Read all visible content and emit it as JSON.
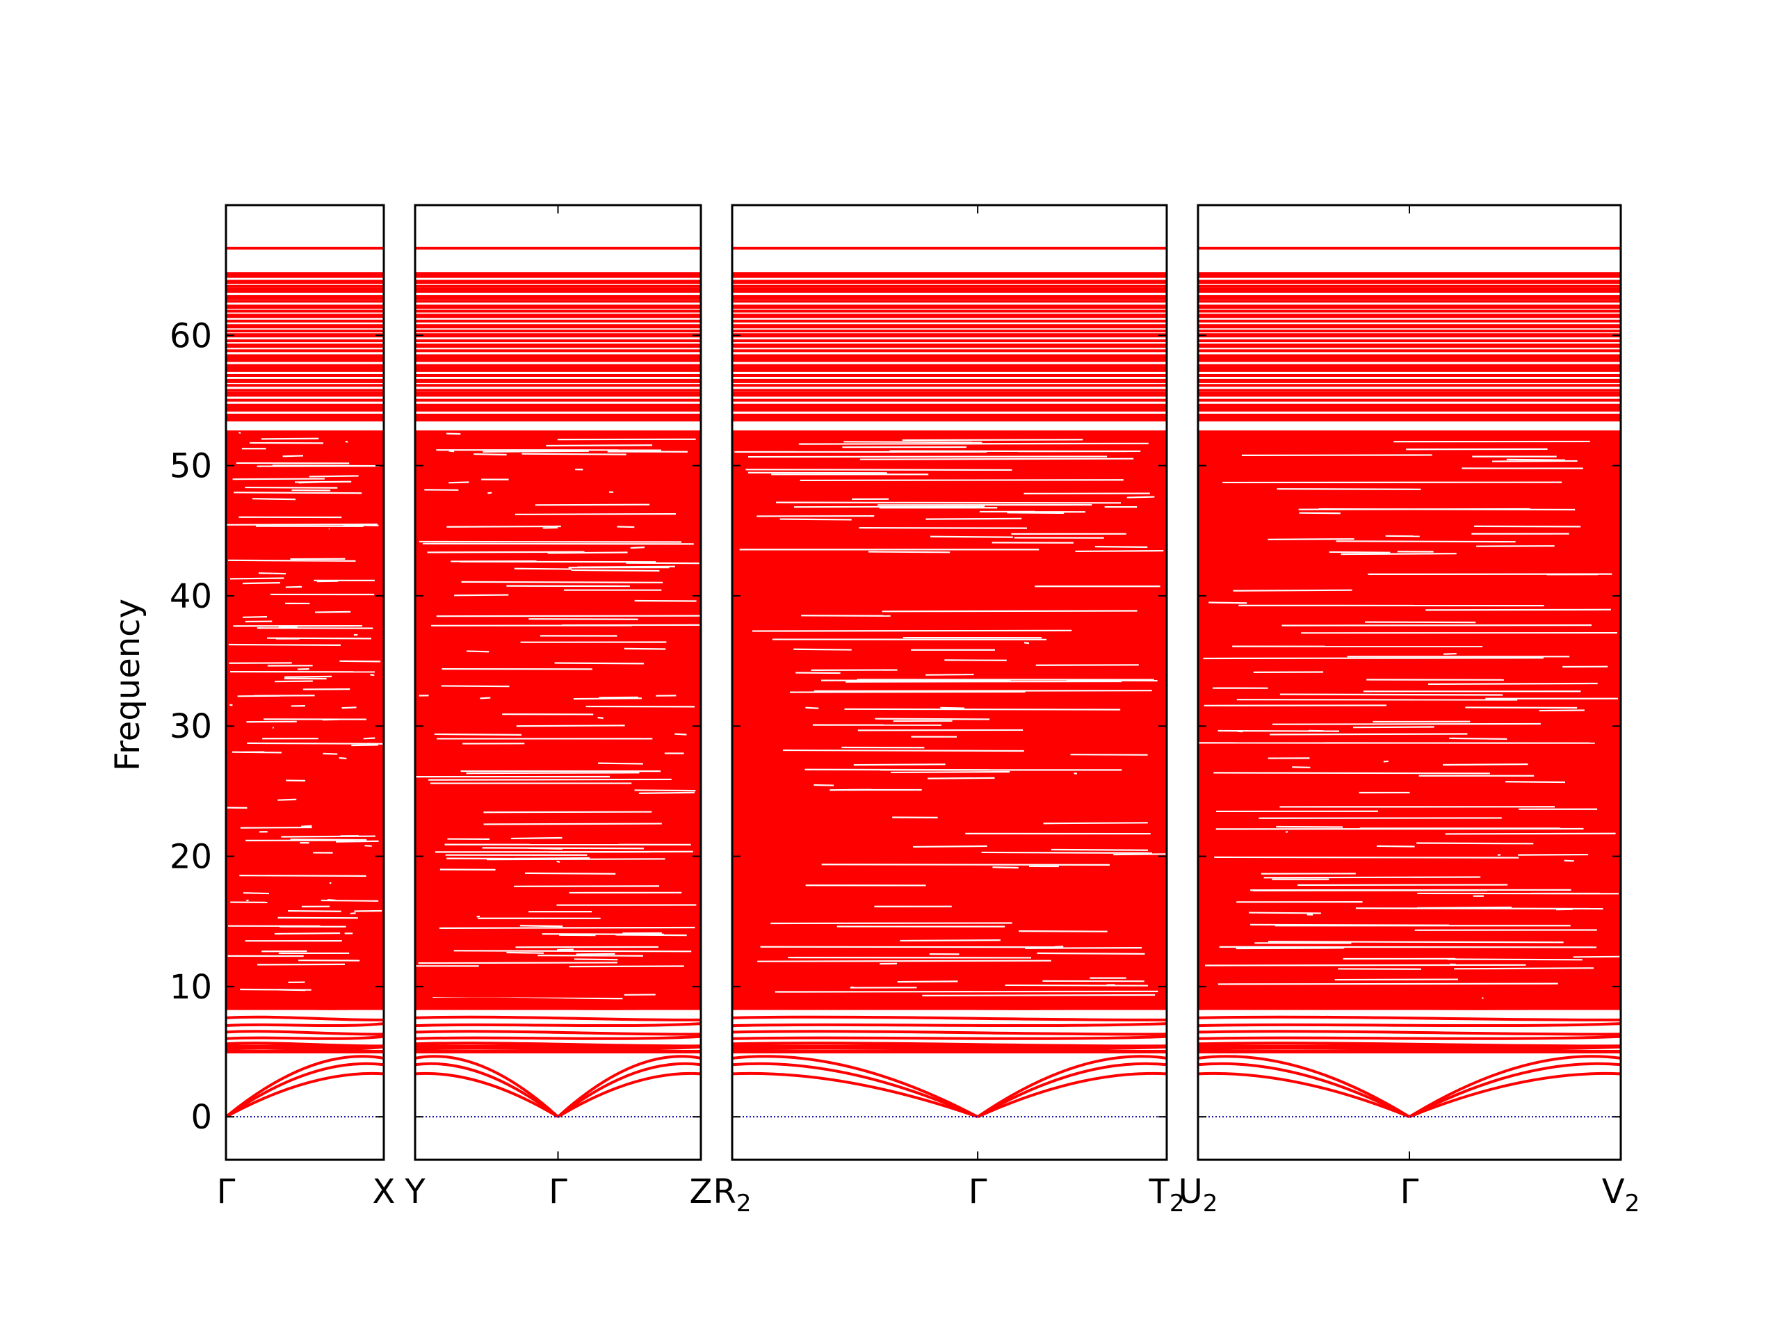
{
  "chart_data": {
    "type": "line",
    "ylabel": "Frequency",
    "xlabel": "",
    "title": "",
    "ylim": [
      -3.3,
      70
    ],
    "yticks": [
      0,
      10,
      20,
      30,
      40,
      50,
      60
    ],
    "ytick_labels": [
      "0",
      "10",
      "20",
      "30",
      "40",
      "50",
      "60"
    ],
    "line_color": "#ff0000",
    "zero_line_color": "#0000aa",
    "grid": false,
    "legend": "none",
    "panels": [
      {
        "segments": [
          "Γ–X"
        ],
        "labels": [
          "Γ",
          "X"
        ],
        "tick_positions": [
          0,
          1
        ]
      },
      {
        "segments": [
          "Y–Γ",
          "Γ–Z"
        ],
        "labels": [
          "Y",
          "Γ",
          "Z"
        ],
        "tick_positions": [
          0,
          0.5,
          1
        ]
      },
      {
        "segments": [
          "R2–Γ",
          "Γ–T2"
        ],
        "labels": [
          "R",
          "Γ",
          "T"
        ],
        "label_subscripts": [
          "2",
          "",
          "2"
        ],
        "tick_positions": [
          0,
          0.565,
          1
        ]
      },
      {
        "segments": [
          "U2–Γ",
          "Γ–V2"
        ],
        "labels": [
          "U",
          "Γ",
          "V"
        ],
        "label_subscripts": [
          "2",
          "",
          "2"
        ],
        "tick_positions": [
          0,
          0.5,
          1
        ]
      }
    ],
    "bands_description": {
      "acoustic_branches_at_gamma": 3,
      "acoustic_end_values": [
        3.3,
        4.0,
        4.5
      ],
      "low_optical_bands": [
        5.2,
        5.6,
        6.0,
        6.5,
        7.0,
        7.6,
        8.3,
        9.0
      ],
      "dense_region_range": [
        5,
        53
      ],
      "flat_high_bands": [
        53.7,
        54.5,
        55.5,
        56.5,
        57.5,
        58.2,
        59.2,
        60.0,
        60.7,
        61.5,
        62.2,
        62.9,
        63.5,
        64.1,
        64.7,
        66.7
      ]
    }
  }
}
